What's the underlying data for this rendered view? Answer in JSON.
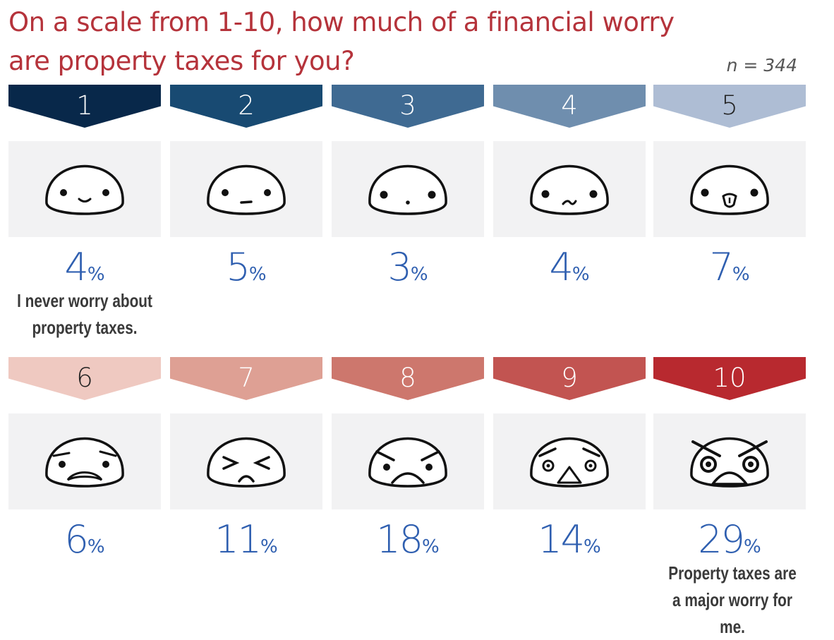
{
  "title": "On a scale from 1-10, how much of a financial worry are property taxes for you?",
  "n_note": "n = 344",
  "percent_sign": "%",
  "notes": {
    "low": "I never worry about property taxes.",
    "high": "Property taxes are a major worry for me."
  },
  "colors": {
    "title": "#b5333b",
    "percent_text": "#2f5fb0",
    "face_background": "#f2f2f3",
    "scale": [
      "#08284a",
      "#184a72",
      "#3f6a92",
      "#6f8eae",
      "#aebdd4",
      "#efc9c1",
      "#dea094",
      "#cd776d",
      "#c25451",
      "#b8292f"
    ]
  },
  "icons": [
    "smiling-face-icon",
    "neutral-face-icon",
    "blank-face-icon",
    "uneasy-face-icon",
    "tongue-out-face-icon",
    "worried-face-icon",
    "squinting-face-icon",
    "frowning-face-icon",
    "angry-face-icon",
    "furious-face-icon"
  ],
  "chart_data": {
    "type": "bar",
    "title": "On a scale from 1-10, how much of a financial worry are property taxes for you?",
    "categories": [
      "1",
      "2",
      "3",
      "4",
      "5",
      "6",
      "7",
      "8",
      "9",
      "10"
    ],
    "values": [
      4,
      5,
      3,
      4,
      7,
      6,
      11,
      18,
      14,
      29
    ],
    "unit": "%"
  }
}
